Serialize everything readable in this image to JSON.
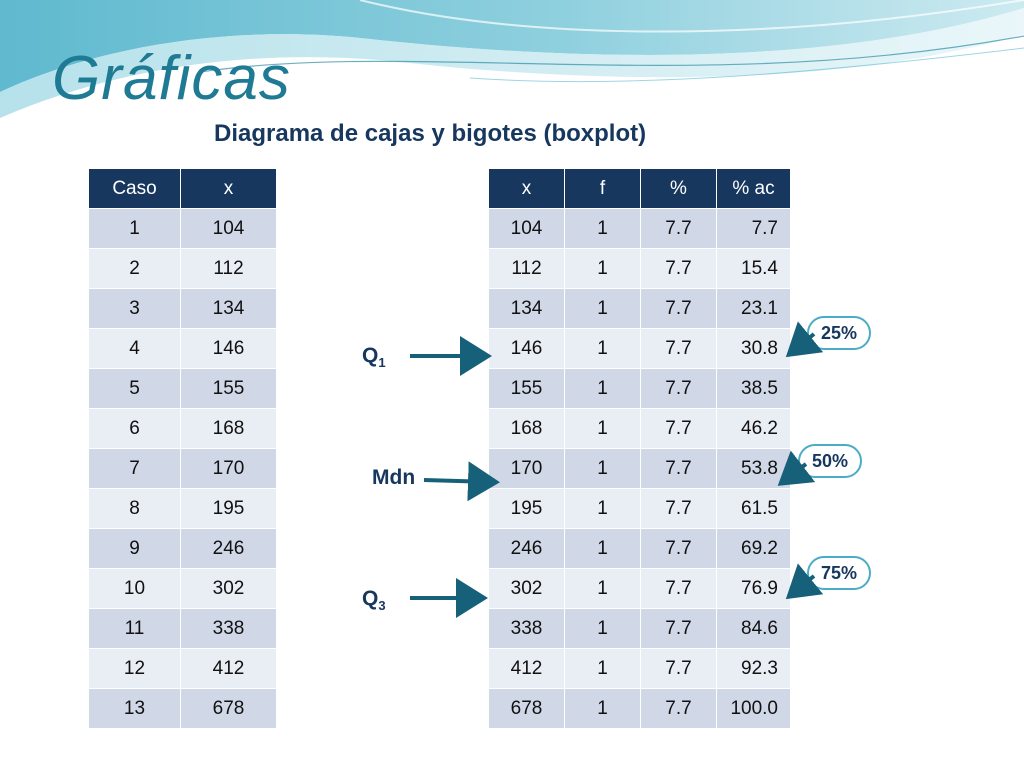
{
  "header": {
    "title": "Gráficas",
    "subtitle": "Diagrama de cajas y bigotes (boxplot)"
  },
  "colors": {
    "accent": "#1f7a94",
    "header_fill": "#17375e",
    "row_dark": "#d0d8e8",
    "row_light": "#e9edf4",
    "arrow": "#17607a",
    "bubble_border": "#4bacc6"
  },
  "left_table": {
    "headers": [
      "Caso",
      "x"
    ],
    "rows": [
      [
        "1",
        "104"
      ],
      [
        "2",
        "112"
      ],
      [
        "3",
        "134"
      ],
      [
        "4",
        "146"
      ],
      [
        "5",
        "155"
      ],
      [
        "6",
        "168"
      ],
      [
        "7",
        "170"
      ],
      [
        "8",
        "195"
      ],
      [
        "9",
        "246"
      ],
      [
        "10",
        "302"
      ],
      [
        "11",
        "338"
      ],
      [
        "12",
        "412"
      ],
      [
        "13",
        "678"
      ]
    ]
  },
  "right_table": {
    "headers": [
      "x",
      "f",
      "%",
      "% ac"
    ],
    "rows": [
      [
        "104",
        "1",
        "7.7",
        "7.7"
      ],
      [
        "112",
        "1",
        "7.7",
        "15.4"
      ],
      [
        "134",
        "1",
        "7.7",
        "23.1"
      ],
      [
        "146",
        "1",
        "7.7",
        "30.8"
      ],
      [
        "155",
        "1",
        "7.7",
        "38.5"
      ],
      [
        "168",
        "1",
        "7.7",
        "46.2"
      ],
      [
        "170",
        "1",
        "7.7",
        "53.8"
      ],
      [
        "195",
        "1",
        "7.7",
        "61.5"
      ],
      [
        "246",
        "1",
        "7.7",
        "69.2"
      ],
      [
        "302",
        "1",
        "7.7",
        "76.9"
      ],
      [
        "338",
        "1",
        "7.7",
        "84.6"
      ],
      [
        "412",
        "1",
        "7.7",
        "92.3"
      ],
      [
        "678",
        "1",
        "7.7",
        "100.0"
      ]
    ]
  },
  "markers": {
    "q1": {
      "letter": "Q",
      "sub": "1"
    },
    "mdn": {
      "label": "Mdn"
    },
    "q3": {
      "letter": "Q",
      "sub": "3"
    }
  },
  "bubbles": {
    "p25": "25%",
    "p50": "50%",
    "p75": "75%"
  }
}
